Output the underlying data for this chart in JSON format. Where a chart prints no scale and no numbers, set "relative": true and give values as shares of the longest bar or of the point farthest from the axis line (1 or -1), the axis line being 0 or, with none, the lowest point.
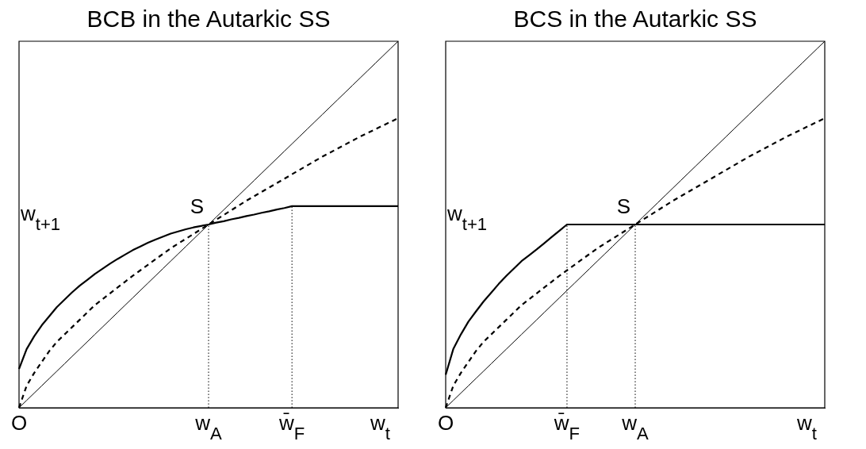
{
  "chart_data": [
    {
      "type": "line",
      "title": "BCB in the Autarkic SS",
      "xlabel": "w$_{t}$",
      "ylabel": "w$_{t+1}$",
      "relative": true,
      "legend": false,
      "categories": [
        "O",
        null,
        null,
        null,
        null,
        null,
        null,
        null,
        null,
        null,
        null,
        null,
        null,
        null,
        null,
        null,
        null,
        null,
        null,
        null,
        null,
        null,
        null,
        null,
        null,
        "w$_{A}$",
        null,
        null,
        null,
        null,
        null,
        null,
        null,
        null,
        null,
        null,
        "w̄$_{F}$",
        null,
        null,
        null,
        null,
        null,
        null,
        null,
        null,
        null,
        null,
        null,
        null,
        null,
        null
      ],
      "annotations": [
        {
          "text": "S",
          "x": "w$_{A}$",
          "y": 0.5
        }
      ],
      "ref_lines": [
        {
          "axis": "x",
          "value": "w$_{A}$",
          "line_style": "dotted",
          "color": "#000000"
        },
        {
          "axis": "x",
          "value": "w̄$_{F}$",
          "line_style": "dotted",
          "color": "#000000"
        }
      ],
      "series": [
        {
          "color": "#000000",
          "line_style": "solid",
          "values": [
            0,
            0.02,
            0.04,
            0.06,
            0.08,
            0.1,
            0.12,
            0.14,
            0.16,
            0.18,
            0.2,
            0.22,
            0.24,
            0.26,
            0.28,
            0.3,
            0.32,
            0.34,
            0.36,
            0.38,
            0.4,
            0.42,
            0.44,
            0.46,
            0.48,
            0.5,
            0.52,
            0.54,
            0.56,
            0.58,
            0.6,
            0.62,
            0.64,
            0.66,
            0.68,
            0.7,
            0.72,
            0.74,
            0.76,
            0.78,
            0.8,
            0.82,
            0.84,
            0.86,
            0.88,
            0.9,
            0.92,
            0.94,
            0.96,
            0.98,
            1
          ]
        },
        {
          "color": "#000000",
          "line_style": "solid",
          "values": [
            0.106,
            0.16,
            0.195,
            0.225,
            0.25,
            0.275,
            0.295,
            0.315,
            0.333,
            0.349,
            0.365,
            0.379,
            0.393,
            0.406,
            0.418,
            0.43,
            0.44,
            0.45,
            0.459,
            0.467,
            0.475,
            0.481,
            0.487,
            0.492,
            0.496,
            0.5,
            0.505,
            0.509,
            0.514,
            0.518,
            0.523,
            0.527,
            0.532,
            0.536,
            0.541,
            0.545,
            0.55,
            0.55,
            0.55,
            0.55,
            0.55,
            0.55,
            0.55,
            0.55,
            0.55,
            0.55,
            0.55,
            0.55,
            0.55,
            0.55,
            0.55
          ]
        },
        {
          "color": "#000000",
          "line_style": "dashed",
          "values": [
            0,
            0.06,
            0.095,
            0.125,
            0.155,
            0.18,
            0.2,
            0.22,
            0.24,
            0.26,
            0.28,
            0.296,
            0.312,
            0.328,
            0.344,
            0.36,
            0.375,
            0.39,
            0.405,
            0.42,
            0.435,
            0.448,
            0.461,
            0.474,
            0.487,
            0.5,
            0.513,
            0.526,
            0.539,
            0.552,
            0.565,
            0.577,
            0.589,
            0.601,
            0.613,
            0.625,
            0.637,
            0.649,
            0.661,
            0.673,
            0.685,
            0.696,
            0.707,
            0.718,
            0.729,
            0.74,
            0.75,
            0.76,
            0.77,
            0.78,
            0.79
          ]
        }
      ]
    },
    {
      "type": "line",
      "title": "BCS in the Autarkic SS",
      "xlabel": "w$_{t}$",
      "ylabel": "w$_{t+1}$",
      "relative": true,
      "legend": false,
      "categories": [
        "O",
        null,
        null,
        null,
        null,
        null,
        null,
        null,
        null,
        null,
        null,
        null,
        null,
        null,
        null,
        null,
        "w̄$_{F}$",
        null,
        null,
        null,
        null,
        null,
        null,
        null,
        null,
        "w$_{A}$",
        null,
        null,
        null,
        null,
        null,
        null,
        null,
        null,
        null,
        null,
        null,
        null,
        null,
        null,
        null,
        null,
        null,
        null,
        null,
        null,
        null,
        null,
        null,
        null,
        null
      ],
      "annotations": [
        {
          "text": "S",
          "x": "w$_{A}$",
          "y": 0.5
        }
      ],
      "ref_lines": [
        {
          "axis": "x",
          "value": "w̄$_{F}$",
          "line_style": "dotted",
          "color": "#000000"
        },
        {
          "axis": "x",
          "value": "w$_{A}$",
          "line_style": "dotted",
          "color": "#000000"
        }
      ],
      "series": [
        {
          "color": "#000000",
          "line_style": "solid",
          "values": [
            0,
            0.02,
            0.04,
            0.06,
            0.08,
            0.1,
            0.12,
            0.14,
            0.16,
            0.18,
            0.2,
            0.22,
            0.24,
            0.26,
            0.28,
            0.3,
            0.32,
            0.34,
            0.36,
            0.38,
            0.4,
            0.42,
            0.44,
            0.46,
            0.48,
            0.5,
            0.52,
            0.54,
            0.56,
            0.58,
            0.6,
            0.62,
            0.64,
            0.66,
            0.68,
            0.7,
            0.72,
            0.74,
            0.76,
            0.78,
            0.8,
            0.82,
            0.84,
            0.86,
            0.88,
            0.9,
            0.92,
            0.94,
            0.96,
            0.98,
            1
          ]
        },
        {
          "color": "#000000",
          "line_style": "solid",
          "values": [
            0.09,
            0.16,
            0.2,
            0.235,
            0.263,
            0.29,
            0.314,
            0.338,
            0.36,
            0.38,
            0.4,
            0.416,
            0.432,
            0.449,
            0.466,
            0.483,
            0.5,
            0.5,
            0.5,
            0.5,
            0.5,
            0.5,
            0.5,
            0.5,
            0.5,
            0.5,
            0.5,
            0.5,
            0.5,
            0.5,
            0.5,
            0.5,
            0.5,
            0.5,
            0.5,
            0.5,
            0.5,
            0.5,
            0.5,
            0.5,
            0.5,
            0.5,
            0.5,
            0.5,
            0.5,
            0.5,
            0.5,
            0.5,
            0.5,
            0.5,
            0.5
          ]
        },
        {
          "color": "#000000",
          "line_style": "dashed",
          "values": [
            0,
            0.06,
            0.095,
            0.125,
            0.155,
            0.18,
            0.2,
            0.22,
            0.24,
            0.26,
            0.28,
            0.296,
            0.312,
            0.328,
            0.344,
            0.36,
            0.375,
            0.39,
            0.405,
            0.42,
            0.435,
            0.448,
            0.461,
            0.474,
            0.487,
            0.5,
            0.513,
            0.526,
            0.539,
            0.552,
            0.565,
            0.577,
            0.589,
            0.601,
            0.613,
            0.625,
            0.637,
            0.649,
            0.661,
            0.673,
            0.685,
            0.696,
            0.707,
            0.718,
            0.729,
            0.74,
            0.75,
            0.76,
            0.77,
            0.78,
            0.79
          ]
        }
      ]
    }
  ]
}
